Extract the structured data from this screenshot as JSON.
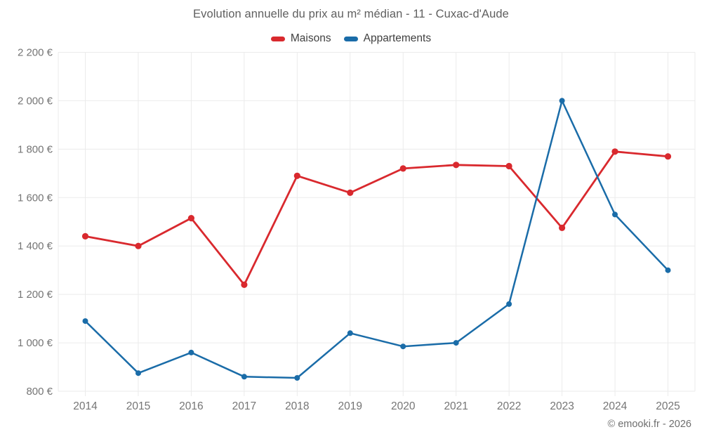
{
  "page": {
    "title": "Evolution annuelle du prix au m² médian - 11 - Cuxac-d'Aude",
    "footer_credit": "© emooki.fr - 2026"
  },
  "chart_data": {
    "type": "line",
    "title": "Evolution annuelle du prix au m² médian - 11 - Cuxac-d'Aude",
    "x": [
      "2014",
      "2015",
      "2016",
      "2017",
      "2018",
      "2019",
      "2020",
      "2021",
      "2022",
      "2023",
      "2024",
      "2025"
    ],
    "series": [
      {
        "name": "Maisons",
        "color": "#d9292e",
        "line_width": 2.8,
        "marker_radius": 4.6,
        "values": [
          1440,
          1400,
          1515,
          1240,
          1690,
          1620,
          1720,
          1735,
          1730,
          1475,
          1790,
          1770
        ]
      },
      {
        "name": "Appartements",
        "color": "#1a6ca8",
        "line_width": 2.5,
        "marker_radius": 4.0,
        "values": [
          1090,
          875,
          960,
          860,
          855,
          1040,
          985,
          1000,
          1160,
          2000,
          1530,
          1300
        ]
      }
    ],
    "ylim": [
      800,
      2200
    ],
    "yticks": [
      800,
      1000,
      1200,
      1400,
      1600,
      1800,
      2000,
      2200
    ],
    "ytick_labels": [
      "800 €",
      "1 000 €",
      "1 200 €",
      "1 400 €",
      "1 600 €",
      "1 800 €",
      "2 000 €",
      "2 200 €"
    ],
    "xlabel": "",
    "ylabel": "",
    "grid": true,
    "legend_position": "top",
    "grid_color": "#ebebeb",
    "tick_label_color": "#757575"
  }
}
